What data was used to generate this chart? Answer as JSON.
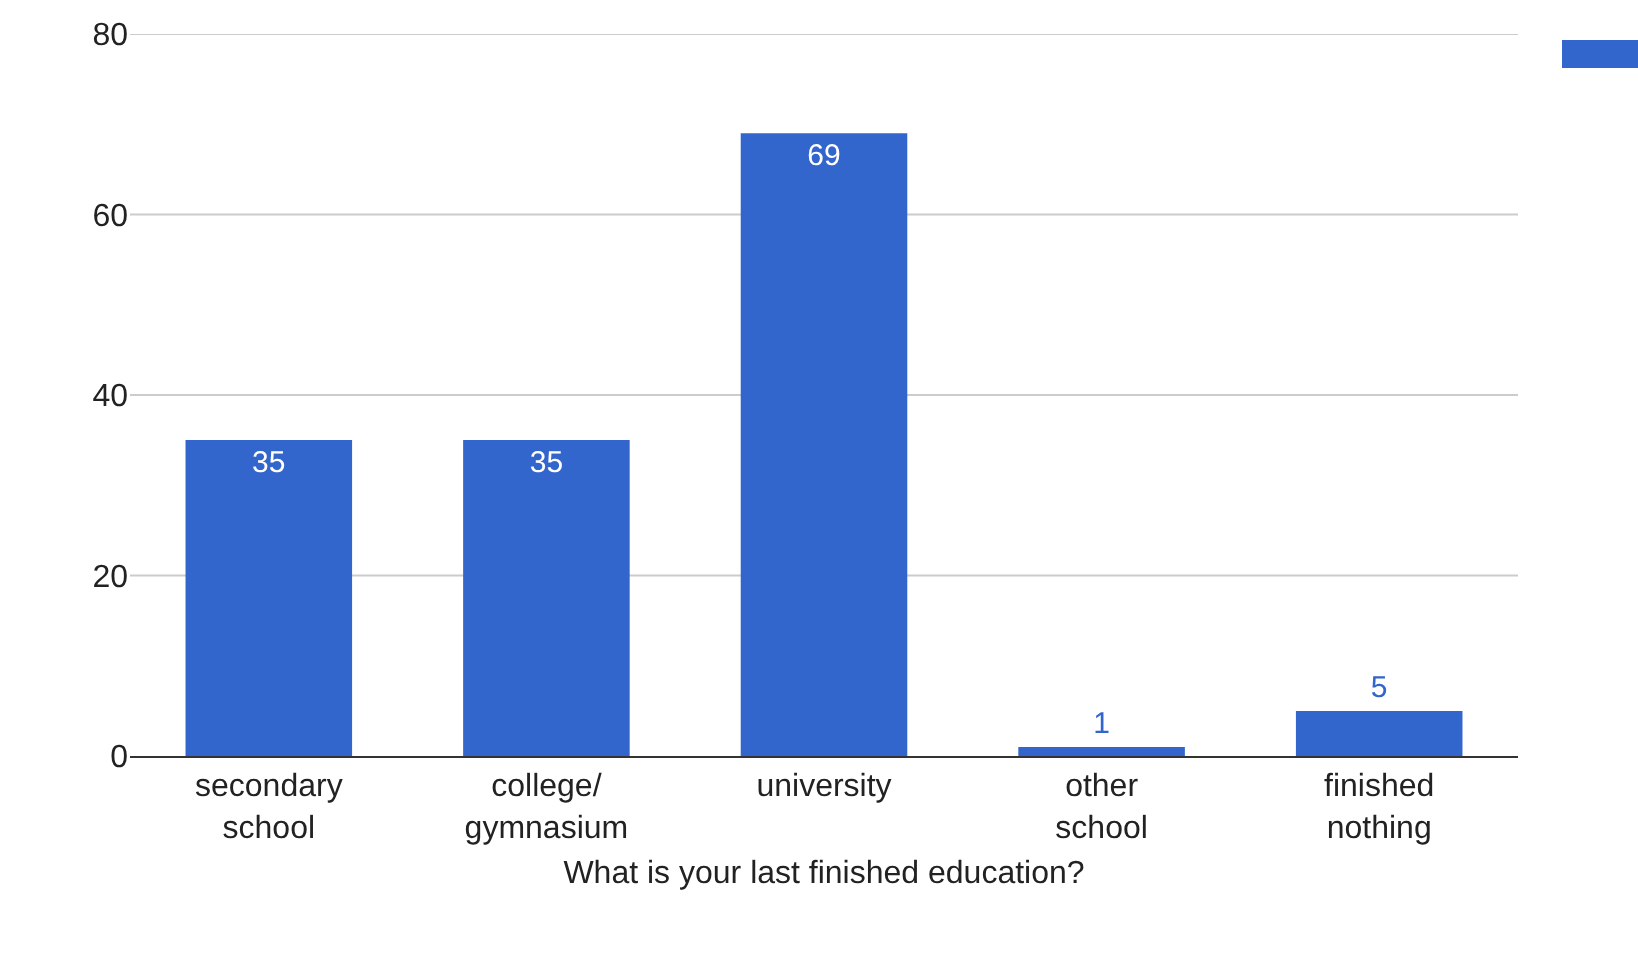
{
  "chart_data": {
    "type": "bar",
    "xlabel": "What is your last finished education?",
    "categories": [
      "secondary school",
      "college/gymnasium",
      "university",
      "other school",
      "finished nothing"
    ],
    "series": [
      {
        "color": "#3366cc",
        "values": [
          35,
          35,
          69,
          1,
          5
        ]
      }
    ],
    "ylim": [
      0,
      80
    ],
    "yticks": [
      0,
      20,
      40,
      60,
      80
    ],
    "grid": "y",
    "data_labels": true
  }
}
